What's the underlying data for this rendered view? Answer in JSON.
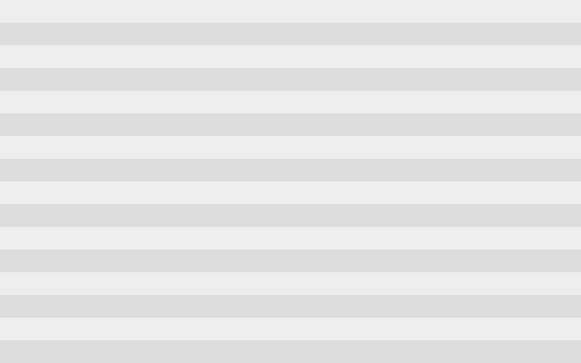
{
  "colors": {
    "stripe_light": "#eeeeee",
    "stripe_dark": "#dddddd"
  }
}
